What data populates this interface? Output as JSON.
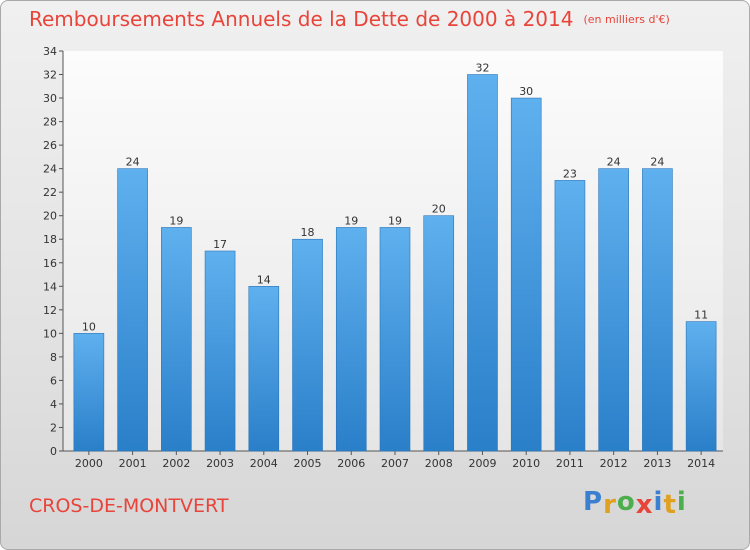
{
  "chart_data": {
    "type": "bar",
    "title": "Remboursements Annuels de la Dette de 2000 à 2014",
    "unit": "(en milliers d'€)",
    "categories": [
      "2000",
      "2001",
      "2002",
      "2003",
      "2004",
      "2005",
      "2006",
      "2007",
      "2008",
      "2009",
      "2010",
      "2011",
      "2012",
      "2013",
      "2014"
    ],
    "values": [
      10,
      24,
      19,
      17,
      14,
      18,
      19,
      19,
      20,
      32,
      30,
      23,
      24,
      24,
      11
    ],
    "ylim": [
      0,
      34
    ],
    "yticks": [
      0,
      2,
      4,
      6,
      8,
      10,
      12,
      14,
      16,
      18,
      20,
      22,
      24,
      26,
      28,
      30,
      32,
      34
    ],
    "grid": false,
    "bar_color": "#4f9fe0"
  },
  "commune": "CROS-DE-MONTVERT",
  "logo": {
    "letters": [
      "P",
      "r",
      "o",
      "x",
      "i",
      "t",
      "i"
    ],
    "colors": [
      "#3a7fd0",
      "#e0a020",
      "#4cae4c",
      "#e8443a",
      "#3a7fd0",
      "#e0a020",
      "#4cae4c"
    ]
  }
}
